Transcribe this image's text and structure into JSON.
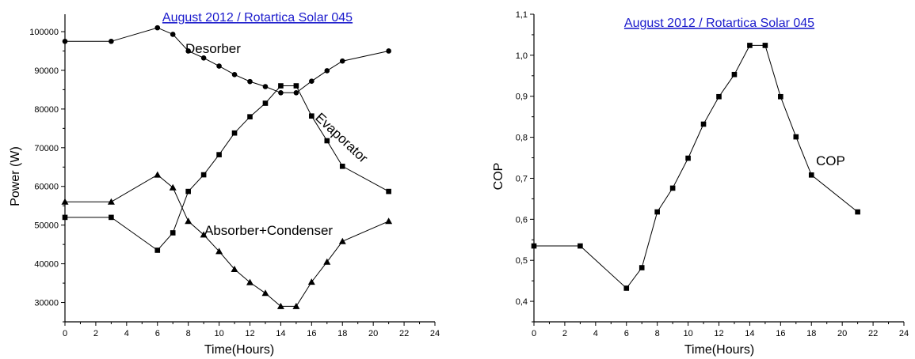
{
  "chart_data": [
    {
      "type": "line",
      "title": "August 2012 / Rotartica Solar 045",
      "xlabel": "Time(Hours)",
      "ylabel": "Power (W)",
      "xlim": [
        0,
        24
      ],
      "ylim": [
        25000,
        104500
      ],
      "x_ticks": [
        "0",
        "2",
        "4",
        "6",
        "8",
        "10",
        "12",
        "14",
        "16",
        "18",
        "20",
        "22",
        "24"
      ],
      "y_ticks": [
        "30000",
        "40000",
        "50000",
        "60000",
        "70000",
        "80000",
        "90000",
        "100000"
      ],
      "grid": false,
      "series": [
        {
          "name": "Desorber",
          "marker": "circle",
          "x": [
            0,
            3,
            6,
            7,
            8,
            9,
            10,
            11,
            12,
            13,
            14,
            15,
            16,
            17,
            18,
            21
          ],
          "y": [
            97500,
            97500,
            101000,
            99300,
            95000,
            93200,
            91100,
            88900,
            87100,
            85800,
            84200,
            84200,
            87200,
            89900,
            92400,
            95000
          ]
        },
        {
          "name": "Evaporator",
          "marker": "square",
          "x": [
            0,
            3,
            6,
            7,
            8,
            9,
            10,
            11,
            12,
            13,
            14,
            15,
            16,
            17,
            18,
            21
          ],
          "y": [
            52000,
            52000,
            43500,
            48000,
            58700,
            63000,
            68200,
            73800,
            78000,
            81500,
            86000,
            86000,
            78200,
            71800,
            65200,
            58700
          ]
        },
        {
          "name": "Absorber+Condenser",
          "marker": "triangle",
          "x": [
            0,
            3,
            6,
            7,
            8,
            9,
            10,
            11,
            12,
            13,
            14,
            15,
            16,
            17,
            18,
            21
          ],
          "y": [
            56000,
            56000,
            63000,
            59700,
            51000,
            47500,
            43200,
            38600,
            35200,
            32400,
            29000,
            29000,
            35300,
            40500,
            45800,
            51000
          ]
        }
      ]
    },
    {
      "type": "line",
      "title": "August 2012 / Rotartica Solar 045",
      "xlabel": "Time(Hours)",
      "ylabel": "COP",
      "xlim": [
        0,
        24
      ],
      "ylim": [
        0.35,
        1.1
      ],
      "x_ticks": [
        "0",
        "2",
        "4",
        "6",
        "8",
        "10",
        "12",
        "14",
        "16",
        "18",
        "20",
        "22",
        "24"
      ],
      "y_ticks": [
        "0,4",
        "0,5",
        "0,6",
        "0,7",
        "0,8",
        "0,9",
        "1,0",
        "1,1"
      ],
      "grid": false,
      "series": [
        {
          "name": "COP",
          "marker": "square",
          "x": [
            0,
            3,
            6,
            7,
            8,
            9,
            10,
            11,
            12,
            13,
            14,
            15,
            16,
            17,
            18,
            21
          ],
          "y": [
            0.535,
            0.535,
            0.432,
            0.482,
            0.618,
            0.676,
            0.749,
            0.832,
            0.899,
            0.953,
            1.024,
            1.024,
            0.899,
            0.801,
            0.708,
            0.618
          ]
        }
      ]
    }
  ]
}
